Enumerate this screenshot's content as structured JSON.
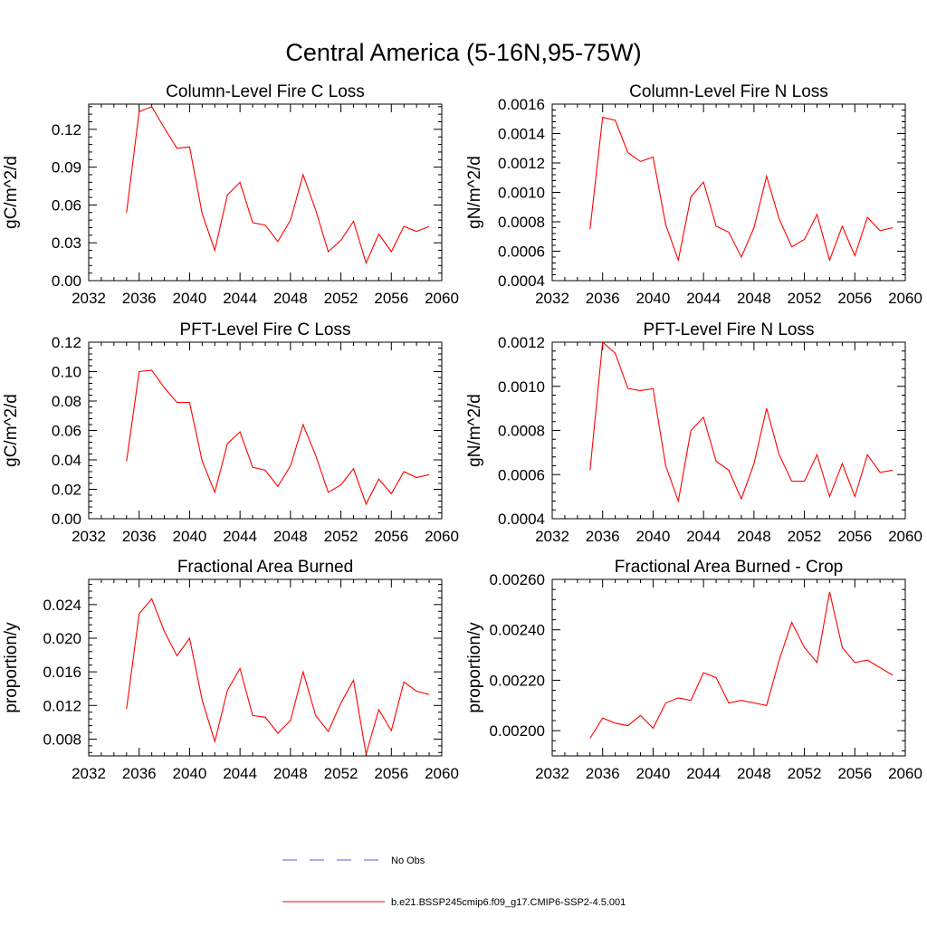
{
  "figure": {
    "title": "Central America (5-16N,95-75W)"
  },
  "chart_data": [
    {
      "type": "line",
      "title": "Column-Level Fire C Loss",
      "xlabel": "",
      "ylabel": "gC/m^2/d",
      "xlim": [
        2032,
        2060
      ],
      "ylim": [
        0.0,
        0.14
      ],
      "xticks": [
        2032,
        2036,
        2040,
        2044,
        2048,
        2052,
        2056,
        2060
      ],
      "yticks": [
        0.0,
        0.03,
        0.06,
        0.09,
        0.12
      ],
      "ytick_labels": [
        "0.00",
        "0.03",
        "0.06",
        "0.09",
        "0.12"
      ],
      "series": [
        {
          "name": "b.e21.BSSP245cmip6.f09_g17.CMIP6-SSP2-4.5.001",
          "color": "#ff0000",
          "x": [
            2035,
            2036,
            2037,
            2038,
            2039,
            2040,
            2041,
            2042,
            2043,
            2044,
            2045,
            2046,
            2047,
            2048,
            2049,
            2050,
            2051,
            2052,
            2053,
            2054,
            2055,
            2056,
            2057,
            2058,
            2059
          ],
          "y": [
            0.054,
            0.134,
            0.138,
            0.121,
            0.105,
            0.106,
            0.053,
            0.024,
            0.068,
            0.078,
            0.046,
            0.044,
            0.031,
            0.048,
            0.084,
            0.056,
            0.023,
            0.032,
            0.047,
            0.014,
            0.037,
            0.023,
            0.043,
            0.039,
            0.043
          ]
        }
      ]
    },
    {
      "type": "line",
      "title": "Column-Level Fire N Loss",
      "xlabel": "",
      "ylabel": "gN/m^2/d",
      "xlim": [
        2032,
        2060
      ],
      "ylim": [
        0.0004,
        0.0016
      ],
      "xticks": [
        2032,
        2036,
        2040,
        2044,
        2048,
        2052,
        2056,
        2060
      ],
      "yticks": [
        0.0004,
        0.0006,
        0.0008,
        0.001,
        0.0012,
        0.0014,
        0.0016
      ],
      "ytick_labels": [
        "0.0004",
        "0.0006",
        "0.0008",
        "0.0010",
        "0.0012",
        "0.0014",
        "0.0016"
      ],
      "series": [
        {
          "name": "b.e21.BSSP245cmip6.f09_g17.CMIP6-SSP2-4.5.001",
          "color": "#ff0000",
          "x": [
            2035,
            2036,
            2037,
            2038,
            2039,
            2040,
            2041,
            2042,
            2043,
            2044,
            2045,
            2046,
            2047,
            2048,
            2049,
            2050,
            2051,
            2052,
            2053,
            2054,
            2055,
            2056,
            2057,
            2058,
            2059
          ],
          "y": [
            0.00075,
            0.00151,
            0.00149,
            0.00127,
            0.00121,
            0.00124,
            0.00078,
            0.00054,
            0.00097,
            0.00107,
            0.00077,
            0.00073,
            0.00056,
            0.00076,
            0.00111,
            0.00082,
            0.00063,
            0.00068,
            0.00085,
            0.00054,
            0.00077,
            0.00057,
            0.00083,
            0.00074,
            0.00076
          ]
        }
      ]
    },
    {
      "type": "line",
      "title": "PFT-Level Fire C Loss",
      "xlabel": "",
      "ylabel": "gC/m^2/d",
      "xlim": [
        2032,
        2060
      ],
      "ylim": [
        0.0,
        0.12
      ],
      "xticks": [
        2032,
        2036,
        2040,
        2044,
        2048,
        2052,
        2056,
        2060
      ],
      "yticks": [
        0.0,
        0.02,
        0.04,
        0.06,
        0.08,
        0.1,
        0.12
      ],
      "ytick_labels": [
        "0.00",
        "0.02",
        "0.04",
        "0.06",
        "0.08",
        "0.10",
        "0.12"
      ],
      "series": [
        {
          "name": "b.e21.BSSP245cmip6.f09_g17.CMIP6-SSP2-4.5.001",
          "color": "#ff0000",
          "x": [
            2035,
            2036,
            2037,
            2038,
            2039,
            2040,
            2041,
            2042,
            2043,
            2044,
            2045,
            2046,
            2047,
            2048,
            2049,
            2050,
            2051,
            2052,
            2053,
            2054,
            2055,
            2056,
            2057,
            2058,
            2059
          ],
          "y": [
            0.039,
            0.1,
            0.101,
            0.089,
            0.079,
            0.079,
            0.039,
            0.018,
            0.051,
            0.059,
            0.035,
            0.033,
            0.022,
            0.036,
            0.064,
            0.043,
            0.018,
            0.023,
            0.034,
            0.01,
            0.027,
            0.017,
            0.032,
            0.028,
            0.03
          ]
        }
      ]
    },
    {
      "type": "line",
      "title": "PFT-Level Fire N Loss",
      "xlabel": "",
      "ylabel": "gN/m^2/d",
      "xlim": [
        2032,
        2060
      ],
      "ylim": [
        0.0004,
        0.0012
      ],
      "xticks": [
        2032,
        2036,
        2040,
        2044,
        2048,
        2052,
        2056,
        2060
      ],
      "yticks": [
        0.0004,
        0.0006,
        0.0008,
        0.001,
        0.0012
      ],
      "ytick_labels": [
        "0.0004",
        "0.0006",
        "0.0008",
        "0.0010",
        "0.0012"
      ],
      "series": [
        {
          "name": "b.e21.BSSP245cmip6.f09_g17.CMIP6-SSP2-4.5.001",
          "color": "#ff0000",
          "x": [
            2035,
            2036,
            2037,
            2038,
            2039,
            2040,
            2041,
            2042,
            2043,
            2044,
            2045,
            2046,
            2047,
            2048,
            2049,
            2050,
            2051,
            2052,
            2053,
            2054,
            2055,
            2056,
            2057,
            2058,
            2059
          ],
          "y": [
            0.00062,
            0.0012,
            0.00115,
            0.00099,
            0.00098,
            0.00099,
            0.00064,
            0.00048,
            0.0008,
            0.00086,
            0.00066,
            0.00062,
            0.00049,
            0.00065,
            0.0009,
            0.00069,
            0.00057,
            0.00057,
            0.00069,
            0.0005,
            0.00065,
            0.0005,
            0.00069,
            0.00061,
            0.00062
          ]
        }
      ]
    },
    {
      "type": "line",
      "title": "Fractional Area Burned",
      "xlabel": "",
      "ylabel": "proportion/y",
      "xlim": [
        2032,
        2060
      ],
      "ylim": [
        0.006,
        0.027
      ],
      "xticks": [
        2032,
        2036,
        2040,
        2044,
        2048,
        2052,
        2056,
        2060
      ],
      "yticks": [
        0.008,
        0.012,
        0.016,
        0.02,
        0.024
      ],
      "ytick_labels": [
        "0.008",
        "0.012",
        "0.016",
        "0.020",
        "0.024"
      ],
      "series": [
        {
          "name": "b.e21.BSSP245cmip6.f09_g17.CMIP6-SSP2-4.5.001",
          "color": "#ff0000",
          "x": [
            2035,
            2036,
            2037,
            2038,
            2039,
            2040,
            2041,
            2042,
            2043,
            2044,
            2045,
            2046,
            2047,
            2048,
            2049,
            2050,
            2051,
            2052,
            2053,
            2054,
            2055,
            2056,
            2057,
            2058,
            2059
          ],
          "y": [
            0.0116,
            0.0229,
            0.0247,
            0.0208,
            0.0179,
            0.02,
            0.0126,
            0.0077,
            0.0138,
            0.0164,
            0.0108,
            0.0106,
            0.0087,
            0.0102,
            0.016,
            0.0108,
            0.0089,
            0.0123,
            0.015,
            0.0062,
            0.0115,
            0.009,
            0.0148,
            0.0137,
            0.0133
          ]
        }
      ]
    },
    {
      "type": "line",
      "title": "Fractional Area Burned - Crop",
      "xlabel": "",
      "ylabel": "proportion/y",
      "xlim": [
        2032,
        2060
      ],
      "ylim": [
        0.0019,
        0.0026
      ],
      "xticks": [
        2032,
        2036,
        2040,
        2044,
        2048,
        2052,
        2056,
        2060
      ],
      "yticks": [
        0.002,
        0.0022,
        0.0024,
        0.0026
      ],
      "ytick_labels": [
        "0.00200",
        "0.00220",
        "0.00240",
        "0.00260"
      ],
      "series": [
        {
          "name": "b.e21.BSSP245cmip6.f09_g17.CMIP6-SSP2-4.5.001",
          "color": "#ff0000",
          "x": [
            2035,
            2036,
            2037,
            2038,
            2039,
            2040,
            2041,
            2042,
            2043,
            2044,
            2045,
            2046,
            2047,
            2048,
            2049,
            2050,
            2051,
            2052,
            2053,
            2054,
            2055,
            2056,
            2057,
            2058,
            2059
          ],
          "y": [
            0.00197,
            0.00205,
            0.00203,
            0.00202,
            0.00206,
            0.00201,
            0.00211,
            0.00213,
            0.00212,
            0.00223,
            0.00221,
            0.00211,
            0.00212,
            0.00211,
            0.0021,
            0.00228,
            0.00243,
            0.00233,
            0.00227,
            0.00255,
            0.00233,
            0.00227,
            0.00228,
            0.00225,
            0.00222
          ]
        }
      ]
    }
  ],
  "legend": {
    "placement": "bottom-center",
    "entries": [
      {
        "label": "No Obs",
        "color": "#5b5bd6",
        "style": "dashed"
      },
      {
        "label": "b.e21.BSSP245cmip6.f09_g17.CMIP6-SSP2-4.5.001",
        "color": "#ff0000",
        "style": "solid"
      }
    ]
  }
}
